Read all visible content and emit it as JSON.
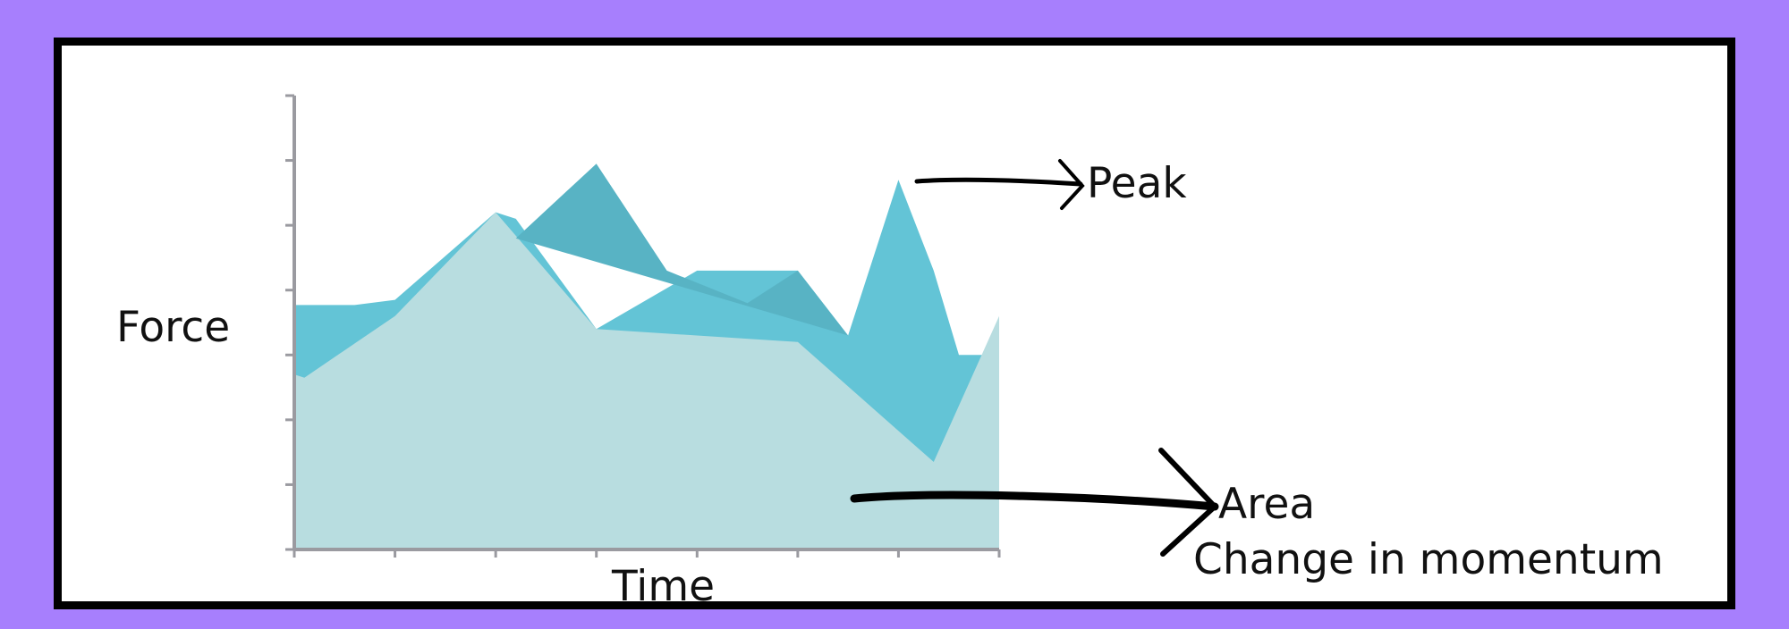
{
  "chart_data": {
    "type": "area",
    "xlabel": "Time",
    "ylabel": "Force",
    "x_ticks": 8,
    "y_ticks": 8,
    "grid": false,
    "xlim": [
      0,
      7
    ],
    "ylim": [
      0,
      7
    ],
    "series": [
      {
        "color": "#b8dde0",
        "x": [
          0,
          0.1,
          1,
          2,
          3,
          4,
          5,
          6.35,
          7
        ],
        "values": [
          2.7,
          2.65,
          3.6,
          5.2,
          3.4,
          3.3,
          3.2,
          1.35,
          3.6
        ]
      },
      {
        "color": "#63c4d6",
        "x": [
          0,
          0.6,
          1,
          2,
          2.2,
          3,
          4,
          5,
          5.5,
          6,
          6.35,
          6.6,
          7
        ],
        "values": [
          3.77,
          3.77,
          3.85,
          5.2,
          5.1,
          3.4,
          4.3,
          4.3,
          3.3,
          5.7,
          4.3,
          3.0,
          3.0
        ]
      },
      {
        "color": "#58b3c4",
        "x": [
          2.2,
          3,
          3.7,
          4.5,
          5,
          5.5
        ],
        "values": [
          4.8,
          5.95,
          4.3,
          3.8,
          4.3,
          3.3
        ]
      }
    ]
  },
  "annotations": {
    "peak": "Peak",
    "area_line1": "Area",
    "area_line2": "Change in momentum"
  },
  "colors": {
    "background": "#a77ffd",
    "frame_border": "#000000",
    "axis": "#9a9aa0",
    "arrow": "#000000"
  }
}
